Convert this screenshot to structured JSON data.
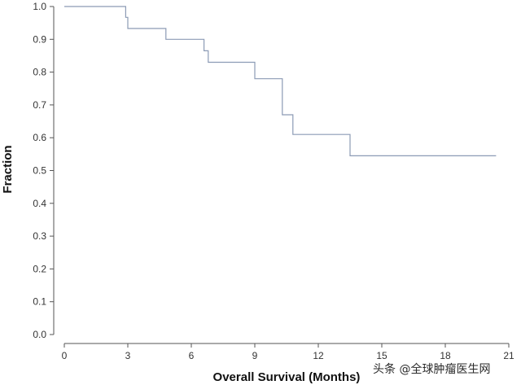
{
  "chart_data": {
    "type": "line",
    "subtype": "step",
    "title": "",
    "xlabel": "Overall Survival (Months)",
    "ylabel": "Fraction",
    "xlim": [
      0,
      21
    ],
    "ylim": [
      0,
      1
    ],
    "xticks": [
      "0",
      "3",
      "6",
      "9",
      "12",
      "15",
      "18",
      "21"
    ],
    "yticks": [
      "0.0",
      "0.1",
      "0.2",
      "0.3",
      "0.4",
      "0.5",
      "0.6",
      "0.7",
      "0.8",
      "0.9",
      "1.0"
    ],
    "grid": false,
    "legend": "none",
    "series": [
      {
        "color": "#8c9bb5",
        "x": [
          0,
          2.9,
          2.9,
          3.0,
          3.0,
          4.8,
          4.8,
          6.6,
          6.6,
          6.8,
          6.8,
          9.0,
          9.0,
          10.3,
          10.3,
          10.8,
          10.8,
          13.5,
          13.5,
          20.4
        ],
        "y": [
          1.0,
          1.0,
          0.967,
          0.967,
          0.933,
          0.933,
          0.9,
          0.9,
          0.865,
          0.865,
          0.83,
          0.83,
          0.78,
          0.78,
          0.67,
          0.67,
          0.61,
          0.61,
          0.545,
          0.545
        ]
      }
    ]
  },
  "watermark": "头条 @全球肿瘤医生网",
  "colors": {
    "axis": "#555555",
    "curve": "#8c9bb5"
  }
}
